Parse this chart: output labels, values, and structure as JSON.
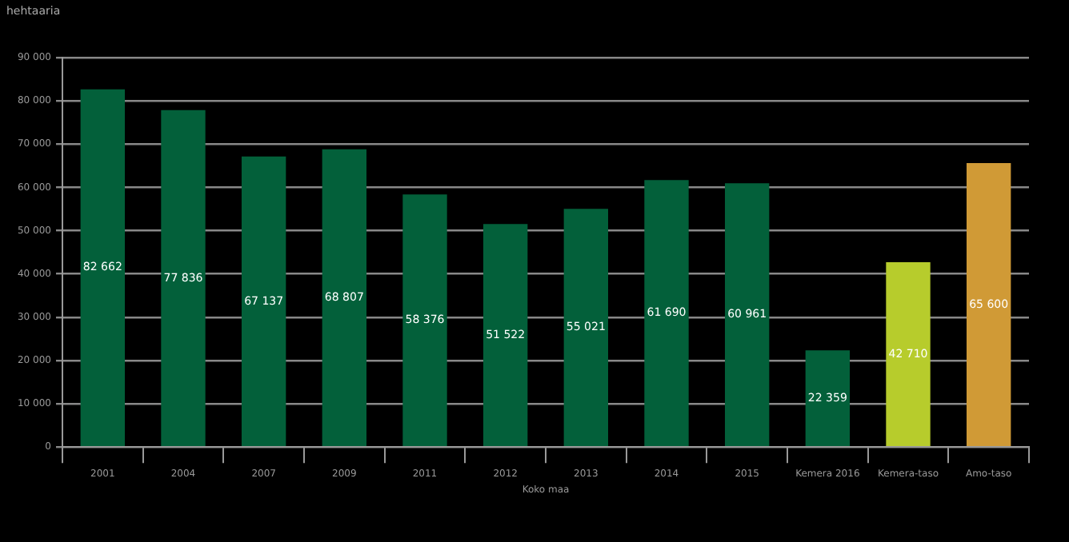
{
  "chart_data": {
    "type": "bar",
    "ylabel": "hehtaaria",
    "xlabel": "Koko maa",
    "categories": [
      "2001",
      "2004",
      "2007",
      "2009",
      "2011",
      "2012",
      "2013",
      "2014",
      "2015",
      "Kemera 2016",
      "Kemera-taso",
      "Amo-taso"
    ],
    "values": [
      82662,
      77836,
      67137,
      68807,
      58376,
      51522,
      55021,
      61690,
      60961,
      22359,
      42710,
      65600
    ],
    "value_labels": [
      "82 662",
      "77 836",
      "67 137",
      "68 807",
      "58 376",
      "51 522",
      "55 021",
      "61 690",
      "60 961",
      "22 359",
      "42 710",
      "65 600"
    ],
    "colors": [
      "#03603a",
      "#03603a",
      "#03603a",
      "#03603a",
      "#03603a",
      "#03603a",
      "#03603a",
      "#03603a",
      "#03603a",
      "#03603a",
      "#b7cc2c",
      "#d09a36"
    ],
    "ylim": [
      0,
      90000
    ],
    "yticks": [
      0,
      {
        "value": 10000,
        "label": "10 000"
      },
      {
        "value": 20000,
        "label": "20 000"
      },
      {
        "value": 30000,
        "label": "30 000"
      },
      {
        "value": 40000,
        "label": "40 000"
      },
      {
        "value": 50000,
        "label": "50 000"
      },
      {
        "value": 60000,
        "label": "60 000"
      },
      {
        "value": 70000,
        "label": "70 000"
      },
      {
        "value": 80000,
        "label": "80 000"
      },
      {
        "value": 90000,
        "label": "90 000"
      }
    ],
    "grid": "y",
    "legend": false
  }
}
